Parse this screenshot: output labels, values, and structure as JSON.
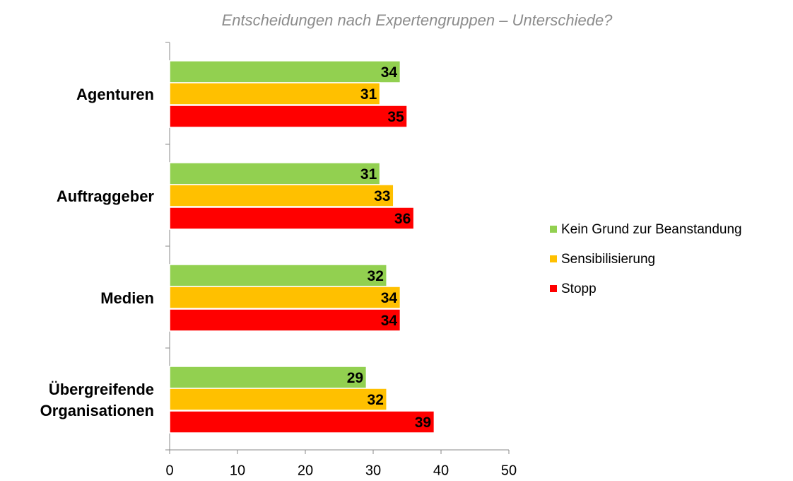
{
  "chart_data": {
    "type": "hbar",
    "title": "Entscheidungen nach Expertengruppen – Unterschiede?",
    "categories": [
      "Agenturen",
      "Auftraggeber",
      "Medien",
      "Übergreifende Organisationen"
    ],
    "series": [
      {
        "name": "Kein Grund zur Beanstandung",
        "color": "#92d050",
        "values": [
          34,
          31,
          32,
          29
        ]
      },
      {
        "name": "Sensibilisierung",
        "color": "#ffc000",
        "values": [
          31,
          33,
          34,
          32
        ]
      },
      {
        "name": "Stopp",
        "color": "#ff0000",
        "values": [
          35,
          36,
          34,
          39
        ]
      }
    ],
    "xlim": [
      0,
      50
    ],
    "xticks": [
      0,
      10,
      20,
      30,
      40,
      50
    ],
    "legend": "right"
  }
}
